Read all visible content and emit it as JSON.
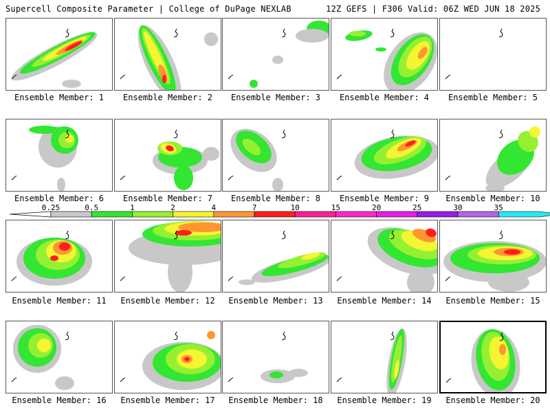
{
  "header": {
    "title": "Supercell Composite Parameter | College of DuPage NEXLAB",
    "run": "12Z GEFS | F306 Valid: 06Z WED JUN 18 2025"
  },
  "legend": {
    "ticks": [
      "0.25",
      "0.5",
      "1",
      "2",
      "4",
      "7",
      "10",
      "15",
      "20",
      "25",
      "30",
      "35"
    ],
    "colors": [
      "#c8c8c8",
      "#32e632",
      "#96f032",
      "#f5f532",
      "#ff9632",
      "#ff1e1e",
      "#ff1e96",
      "#ff28c8",
      "#e61ee6",
      "#961ee6",
      "#b464e6",
      "#28e6f0"
    ]
  },
  "members": [
    {
      "label": "Ensemble Member: 1"
    },
    {
      "label": "Ensemble Member: 2"
    },
    {
      "label": "Ensemble Member: 3"
    },
    {
      "label": "Ensemble Member: 4"
    },
    {
      "label": "Ensemble Member: 5"
    },
    {
      "label": "Ensemble Member: 6"
    },
    {
      "label": "Ensemble Member: 7"
    },
    {
      "label": "Ensemble Member: 8"
    },
    {
      "label": "Ensemble Member: 9"
    },
    {
      "label": "Ensemble Member: 10"
    },
    {
      "label": "Ensemble Member: 11"
    },
    {
      "label": "Ensemble Member: 12"
    },
    {
      "label": "Ensemble Member: 13"
    },
    {
      "label": "Ensemble Member: 14"
    },
    {
      "label": "Ensemble Member: 15"
    },
    {
      "label": "Ensemble Member: 16"
    },
    {
      "label": "Ensemble Member: 17"
    },
    {
      "label": "Ensemble Member: 18"
    },
    {
      "label": "Ensemble Member: 19"
    },
    {
      "label": "Ensemble Member: 20",
      "selected": true
    }
  ]
}
